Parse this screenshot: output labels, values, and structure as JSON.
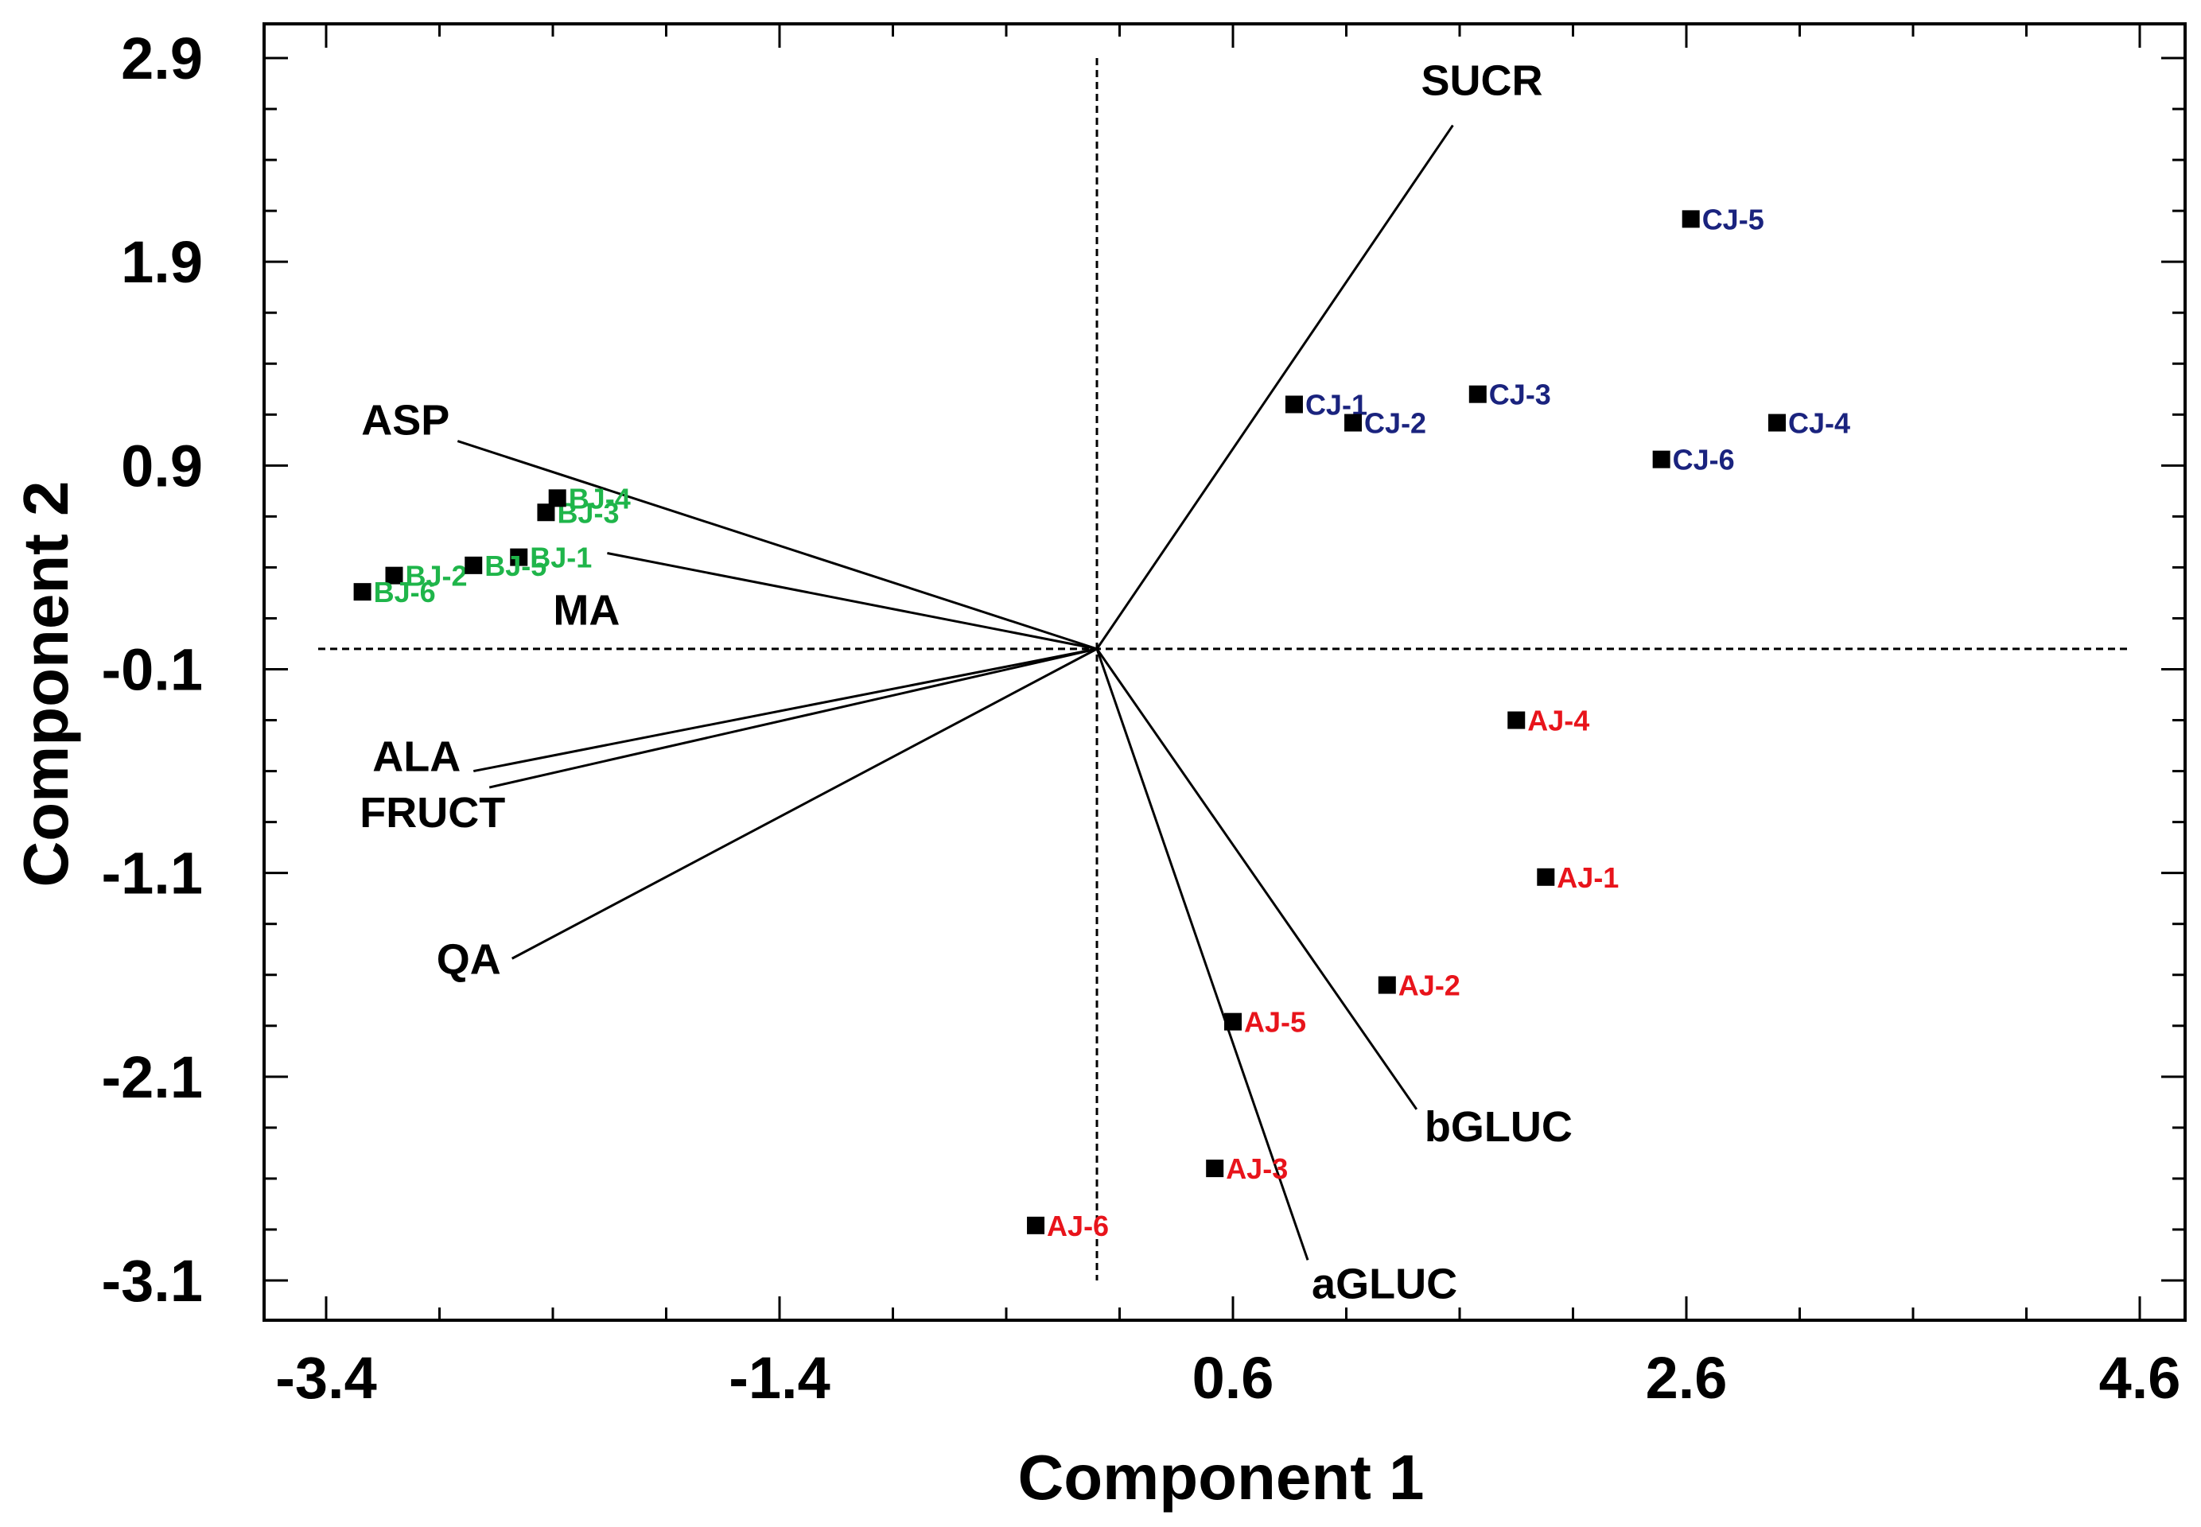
{
  "chart_data": {
    "type": "scatter",
    "subtype": "biplot",
    "title": "",
    "xlabel": "Component 1",
    "ylabel": "Component 2",
    "xlim": [
      -3.4,
      4.6
    ],
    "ylim": [
      -3.1,
      2.9
    ],
    "xticks": [
      -3.4,
      -1.4,
      0.6,
      2.6,
      4.6
    ],
    "xtick_labels": [
      "-3.4",
      "-1.4",
      "0.6",
      "2.6",
      "4.6"
    ],
    "yticks": [
      2.9,
      1.9,
      0.9,
      -0.1,
      -1.1,
      -2.1,
      -3.1
    ],
    "ytick_labels": [
      "2.9",
      "1.9",
      "0.9",
      "-0.1",
      "-1.1",
      "-2.1",
      "-3.1"
    ],
    "grid": false,
    "colors": {
      "A": "#e8141b",
      "B": "#1fb54a",
      "C": "#1a237e",
      "marker": "#000000",
      "axes": "#000000"
    },
    "vectors": [
      {
        "name": "SUCR",
        "x": 1.57,
        "y": 2.57
      },
      {
        "name": "ASP",
        "x": -2.82,
        "y": 1.02
      },
      {
        "name": "MA",
        "x": -2.16,
        "y": 0.47
      },
      {
        "name": "ALA",
        "x": -2.75,
        "y": -0.6
      },
      {
        "name": "FRUCT",
        "x": -2.68,
        "y": -0.68
      },
      {
        "name": "QA",
        "x": -2.58,
        "y": -1.52
      },
      {
        "name": "bGLUC",
        "x": 1.41,
        "y": -2.26
      },
      {
        "name": "aGLUC",
        "x": 0.93,
        "y": -3.0
      }
    ],
    "series": [
      {
        "name": "AJ",
        "points": [
          {
            "label": "AJ-1",
            "x": 1.98,
            "y": -1.12
          },
          {
            "label": "AJ-2",
            "x": 1.28,
            "y": -1.65
          },
          {
            "label": "AJ-3",
            "x": 0.52,
            "y": -2.55
          },
          {
            "label": "AJ-4",
            "x": 1.85,
            "y": -0.35
          },
          {
            "label": "AJ-5",
            "x": 0.6,
            "y": -1.83
          },
          {
            "label": "AJ-6",
            "x": -0.27,
            "y": -2.83
          }
        ]
      },
      {
        "name": "BJ",
        "points": [
          {
            "label": "BJ-1",
            "x": -2.55,
            "y": 0.45
          },
          {
            "label": "BJ-2",
            "x": -3.1,
            "y": 0.36
          },
          {
            "label": "BJ-3",
            "x": -2.43,
            "y": 0.67
          },
          {
            "label": "BJ-4",
            "x": -2.38,
            "y": 0.74
          },
          {
            "label": "BJ-5",
            "x": -2.75,
            "y": 0.41
          },
          {
            "label": "BJ-6",
            "x": -3.24,
            "y": 0.28
          }
        ]
      },
      {
        "name": "CJ",
        "points": [
          {
            "label": "CJ-1",
            "x": 0.87,
            "y": 1.2
          },
          {
            "label": "CJ-2",
            "x": 1.13,
            "y": 1.11
          },
          {
            "label": "CJ-3",
            "x": 1.68,
            "y": 1.25
          },
          {
            "label": "CJ-4",
            "x": 3.0,
            "y": 1.11
          },
          {
            "label": "CJ-5",
            "x": 2.62,
            "y": 2.11
          },
          {
            "label": "CJ-6",
            "x": 2.49,
            "y": 0.93
          }
        ]
      }
    ]
  }
}
